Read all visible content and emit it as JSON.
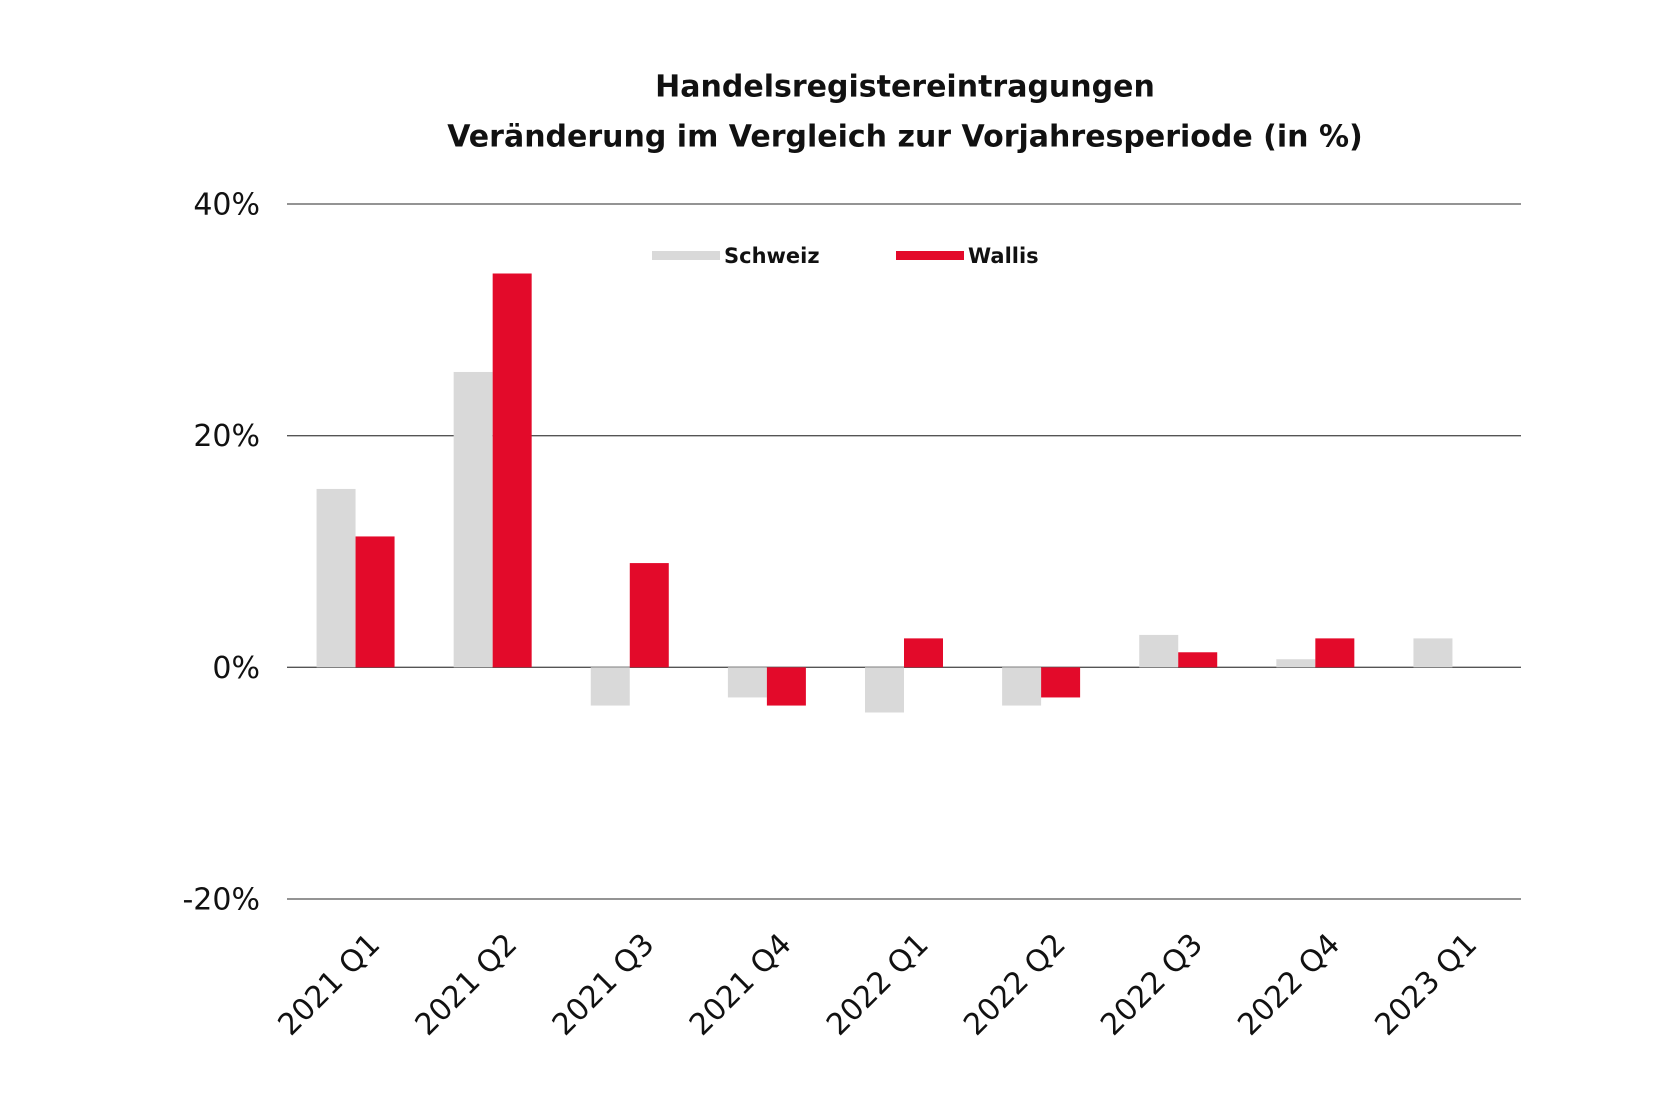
{
  "chart_data": {
    "type": "bar",
    "title": "Handelsregistereintragungen",
    "subtitle": "Veränderung im Vergleich zur Vorjahresperiode (in %)",
    "categories": [
      "2021 Q1",
      "2021 Q2",
      "2021 Q3",
      "2021 Q4",
      "2022 Q1",
      "2022 Q2",
      "2022 Q3",
      "2022 Q4",
      "2023 Q1"
    ],
    "series": [
      {
        "name": "Schweiz",
        "color": "#d9d9d9",
        "values": [
          15.4,
          25.5,
          -3.3,
          -2.6,
          -3.9,
          -3.3,
          2.8,
          0.7,
          2.5
        ]
      },
      {
        "name": "Wallis",
        "color": "#e30a2a",
        "values": [
          11.3,
          34.0,
          9.0,
          -3.3,
          2.5,
          -2.6,
          1.3,
          2.5,
          null
        ]
      }
    ],
    "ylim": [
      -20,
      40
    ],
    "yticks": [
      {
        "value": -20,
        "label": "-20%"
      },
      {
        "value": 0,
        "label": "0%"
      },
      {
        "value": 20,
        "label": "20%"
      },
      {
        "value": 40,
        "label": "40%"
      }
    ],
    "grid": true,
    "legend": "top"
  }
}
